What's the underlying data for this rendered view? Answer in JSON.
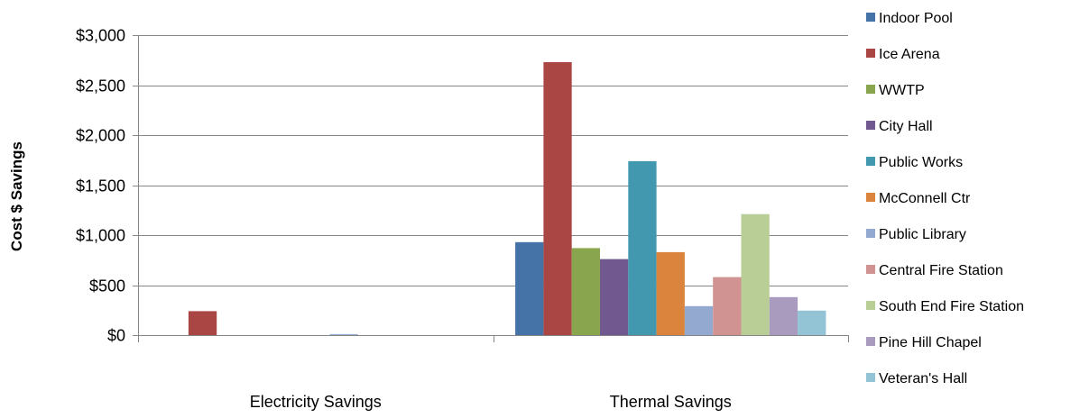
{
  "chart_data": {
    "type": "bar",
    "title": "",
    "xlabel": "",
    "ylabel": "Cost $ Savings",
    "ylim": [
      0,
      3000
    ],
    "yticks": [
      0,
      500,
      1000,
      1500,
      2000,
      2500,
      3000
    ],
    "ytick_labels": [
      "$0",
      "$500",
      "$1,000",
      "$1,500",
      "$2,000",
      "$2,500",
      "$3,000"
    ],
    "categories": [
      "Electricity Savings",
      "Thermal Savings"
    ],
    "grid": true,
    "legend_position": "right",
    "series": [
      {
        "name": "Indoor Pool",
        "values": [
          0,
          930
        ],
        "color": "#4572A7"
      },
      {
        "name": "Ice Arena",
        "values": [
          240,
          2730
        ],
        "color": "#AA4643"
      },
      {
        "name": "WWTP",
        "values": [
          0,
          870
        ],
        "color": "#89A54E"
      },
      {
        "name": "City Hall",
        "values": [
          0,
          760
        ],
        "color": "#71588F"
      },
      {
        "name": "Public Works",
        "values": [
          0,
          1740
        ],
        "color": "#4198AF"
      },
      {
        "name": "McConnell Ctr",
        "values": [
          0,
          830
        ],
        "color": "#DB843D"
      },
      {
        "name": "Public Library",
        "values": [
          10,
          290
        ],
        "color": "#93A9CF"
      },
      {
        "name": "Central Fire Station",
        "values": [
          0,
          580
        ],
        "color": "#D19392"
      },
      {
        "name": "South End Fire Station",
        "values": [
          0,
          1210
        ],
        "color": "#B9CD96"
      },
      {
        "name": "Pine Hill Chapel",
        "values": [
          0,
          380
        ],
        "color": "#A99BBD"
      },
      {
        "name": "Veteran's Hall",
        "values": [
          0,
          245
        ],
        "color": "#92C4D6"
      }
    ]
  }
}
